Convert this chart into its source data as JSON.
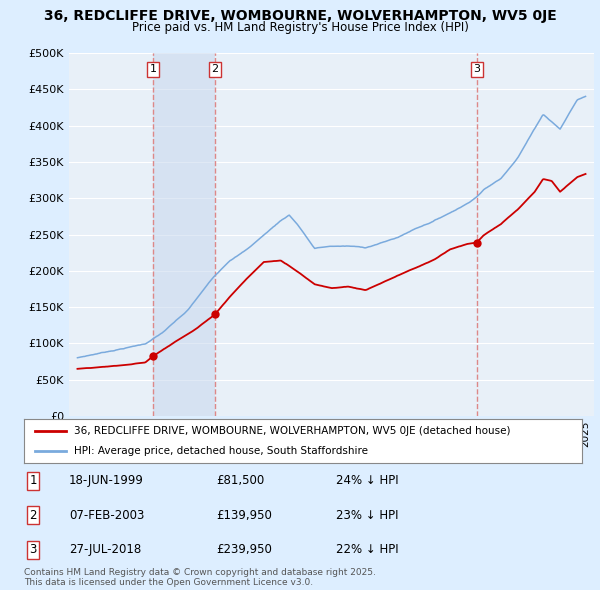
{
  "title": "36, REDCLIFFE DRIVE, WOMBOURNE, WOLVERHAMPTON, WV5 0JE",
  "subtitle": "Price paid vs. HM Land Registry's House Price Index (HPI)",
  "legend_line1": "36, REDCLIFFE DRIVE, WOMBOURNE, WOLVERHAMPTON, WV5 0JE (detached house)",
  "legend_line2": "HPI: Average price, detached house, South Staffordshire",
  "transactions": [
    {
      "num": 1,
      "date": "18-JUN-1999",
      "price": "£81,500",
      "pct": "24% ↓ HPI",
      "year": 1999.46,
      "value": 81500
    },
    {
      "num": 2,
      "date": "07-FEB-2003",
      "price": "£139,950",
      "pct": "23% ↓ HPI",
      "year": 2003.1,
      "value": 139950
    },
    {
      "num": 3,
      "date": "27-JUL-2018",
      "price": "£239,950",
      "pct": "22% ↓ HPI",
      "year": 2018.57,
      "value": 239950
    }
  ],
  "footer": "Contains HM Land Registry data © Crown copyright and database right 2025.\nThis data is licensed under the Open Government Licence v3.0.",
  "red_color": "#cc0000",
  "blue_color": "#7aaadd",
  "vline_color": "#dd8888",
  "shade_color": "#ddeeff",
  "bg_color": "#ddeeff",
  "plot_bg": "#e8f0f8",
  "grid_color": "#ffffff",
  "ylim": [
    0,
    500000
  ],
  "yticks": [
    0,
    50000,
    100000,
    150000,
    200000,
    250000,
    300000,
    350000,
    400000,
    450000,
    500000
  ],
  "xlim_start": 1994.5,
  "xlim_end": 2025.5
}
